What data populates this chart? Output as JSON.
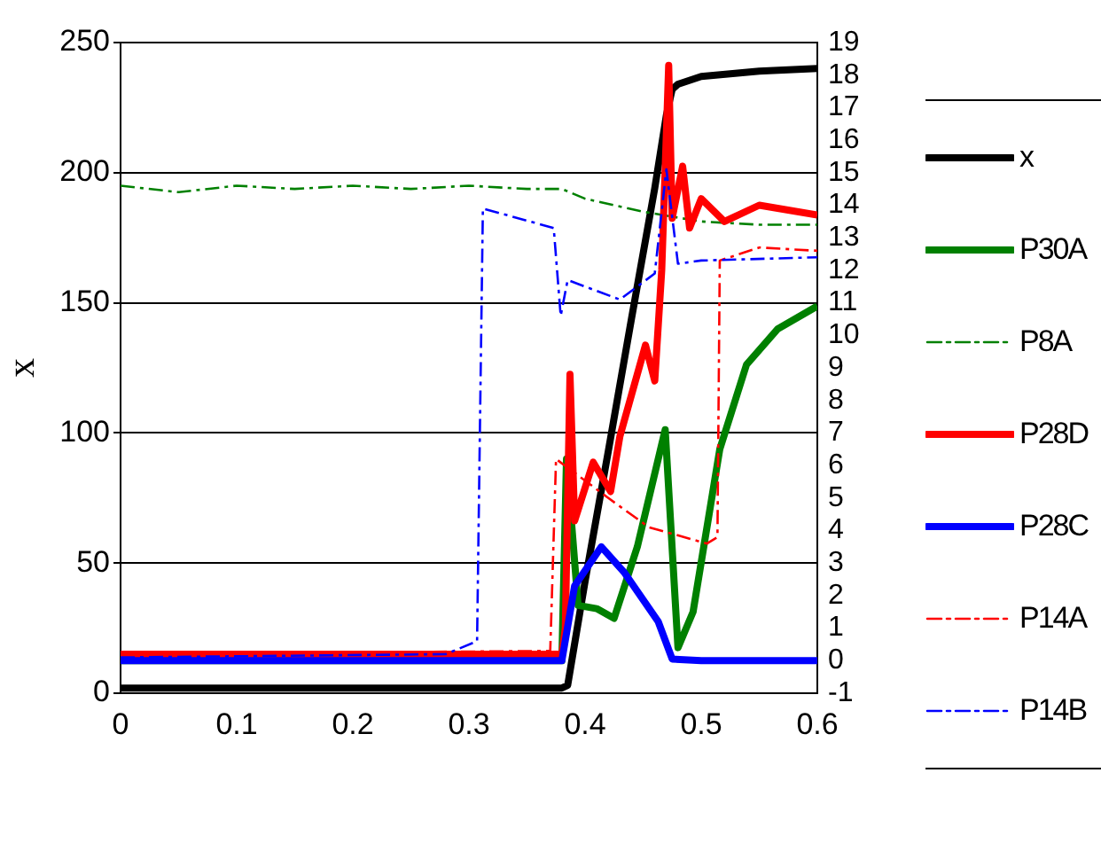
{
  "chart_data": {
    "type": "line",
    "ylabel": "x",
    "xlim": [
      0,
      0.6
    ],
    "xticks": [
      0,
      0.1,
      0.2,
      0.3,
      0.4,
      0.5,
      0.6
    ],
    "ylim": [
      0,
      250
    ],
    "yticks": [
      0,
      50,
      100,
      150,
      200,
      250
    ],
    "y2lim": [
      -1,
      19
    ],
    "y2ticks": [
      -1,
      0,
      1,
      2,
      3,
      4,
      5,
      6,
      7,
      8,
      9,
      10,
      11,
      12,
      13,
      14,
      15,
      16,
      17,
      18,
      19
    ],
    "grid": "y",
    "legend": "right",
    "marker": "none",
    "series": [
      {
        "name": "x",
        "color": "#000000",
        "line_style": "solid",
        "x": [
          0,
          0.38,
          0.385,
          0.4,
          0.42,
          0.44,
          0.46,
          0.47,
          0.475,
          0.48,
          0.5,
          0.55,
          0.6
        ],
        "values": [
          2,
          2,
          3,
          43,
          93,
          144,
          194,
          222,
          232,
          234,
          237,
          239,
          240
        ]
      },
      {
        "name": "P30A",
        "color": "#008000",
        "line_style": "solid",
        "axis": "y2",
        "x": [
          0,
          0.38,
          0.384,
          0.394,
          0.41,
          0.425,
          0.445,
          0.469,
          0.48,
          0.493,
          0.516,
          0.539,
          0.566,
          0.6
        ],
        "values": [
          0,
          0,
          6.2,
          1.7,
          1.6,
          1.3,
          3.5,
          7.1,
          0.4,
          1.5,
          6.5,
          9.1,
          10.2,
          10.9
        ]
      },
      {
        "name": "P8A",
        "color": "#008000",
        "line_style": "dashed",
        "axis": "y2",
        "x": [
          0,
          0.05,
          0.1,
          0.15,
          0.2,
          0.25,
          0.3,
          0.35,
          0.38,
          0.4,
          0.45,
          0.5,
          0.55,
          0.6
        ],
        "values": [
          14.6,
          14.4,
          14.6,
          14.5,
          14.6,
          14.5,
          14.6,
          14.5,
          14.5,
          14.2,
          13.8,
          13.5,
          13.4,
          13.4
        ]
      },
      {
        "name": "P28D",
        "color": "#ff0000",
        "line_style": "solid",
        "axis": "y2",
        "x": [
          0,
          0.38,
          0.383,
          0.387,
          0.391,
          0.407,
          0.422,
          0.43,
          0.452,
          0.46,
          0.466,
          0.472,
          0.475,
          0.484,
          0.49,
          0.5,
          0.52,
          0.55,
          0.6
        ],
        "values": [
          0.2,
          0.2,
          1,
          8.8,
          4.3,
          6.1,
          5.2,
          6.9,
          9.7,
          8.6,
          12,
          18.3,
          13.6,
          15.2,
          13.3,
          14.2,
          13.5,
          14,
          13.7
        ]
      },
      {
        "name": "P28C",
        "color": "#0000ff",
        "line_style": "solid",
        "axis": "y2",
        "x": [
          0,
          0.38,
          0.391,
          0.414,
          0.434,
          0.463,
          0.475,
          0.5,
          0.6
        ],
        "values": [
          0,
          0,
          2.3,
          3.5,
          2.7,
          1.2,
          0.05,
          0,
          0
        ]
      },
      {
        "name": "P14A",
        "color": "#ff0000",
        "line_style": "dashed",
        "axis": "y2",
        "x": [
          0,
          0.37,
          0.375,
          0.39,
          0.42,
          0.455,
          0.505,
          0.514,
          0.516,
          0.55,
          0.6
        ],
        "values": [
          0.2,
          0.3,
          6.2,
          5.8,
          5,
          4.1,
          3.6,
          3.8,
          12.3,
          12.7,
          12.6
        ]
      },
      {
        "name": "P14B",
        "color": "#0000ff",
        "line_style": "dashed",
        "axis": "y2",
        "x": [
          0,
          0.28,
          0.307,
          0.312,
          0.373,
          0.379,
          0.385,
          0.43,
          0.46,
          0.47,
          0.48,
          0.5,
          0.6
        ],
        "values": [
          0.1,
          0.2,
          0.6,
          13.9,
          13.3,
          10.6,
          11.7,
          11.1,
          11.9,
          15.1,
          12.2,
          12.3,
          12.4
        ]
      }
    ]
  }
}
